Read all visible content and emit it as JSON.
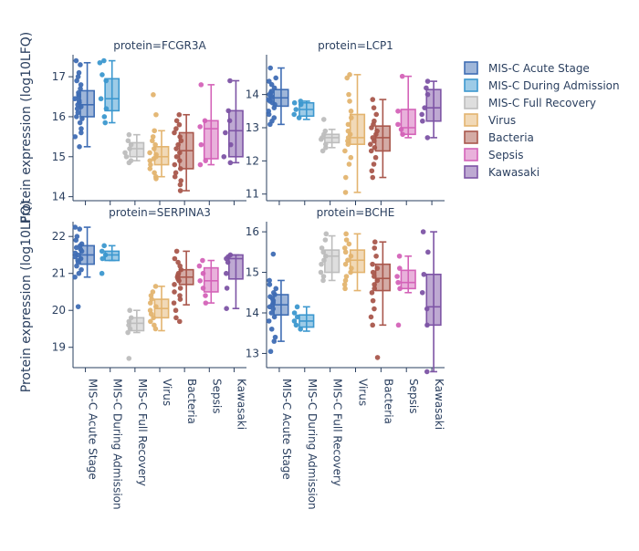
{
  "figure": {
    "ylabel": "Protein expression (log10LFQ)",
    "groups": [
      "MIS-C Acute Stage",
      "MIS-C During Admission",
      "MIS-C Full Recovery",
      "Virus",
      "Bacteria",
      "Sepsis",
      "Kawasaki"
    ],
    "colors": {
      "MIS-C Acute Stage": "#3f6db4",
      "MIS-C During Admission": "#3c98cf",
      "MIS-C Full Recovery": "#bdbdbd",
      "Virus": "#e3b46f",
      "Bacteria": "#a9574c",
      "Sepsis": "#d463b8",
      "Kawasaki": "#7d54a5"
    }
  },
  "legend": {
    "items": [
      {
        "label": "MIS-C Acute Stage",
        "color": "#3f6db4"
      },
      {
        "label": "MIS-C During Admission",
        "color": "#3c98cf"
      },
      {
        "label": "MIS-C Full Recovery",
        "color": "#bdbdbd"
      },
      {
        "label": "Virus",
        "color": "#e3b46f"
      },
      {
        "label": "Bacteria",
        "color": "#a9574c"
      },
      {
        "label": "Sepsis",
        "color": "#d463b8"
      },
      {
        "label": "Kawasaki",
        "color": "#7d54a5"
      }
    ]
  },
  "chart_data": [
    {
      "type": "box",
      "title": "protein=FCGR3A",
      "ylabel": "Protein expression (log10LFQ)",
      "ylim": [
        13.9,
        17.55
      ],
      "yticks": [
        14,
        15,
        16,
        17
      ],
      "boxes": [
        {
          "group": "MIS-C Acute Stage",
          "lower": 15.25,
          "q1": 16.0,
          "median": 16.3,
          "q3": 16.65,
          "upper": 17.35,
          "points": [
            17.4,
            17.3,
            17.1,
            17.0,
            16.9,
            16.8,
            16.7,
            16.6,
            16.55,
            16.5,
            16.45,
            16.4,
            16.35,
            16.3,
            16.25,
            16.2,
            16.1,
            16.0,
            15.95,
            15.85,
            15.7,
            15.6,
            15.5,
            15.25
          ]
        },
        {
          "group": "MIS-C During Admission",
          "lower": 15.85,
          "q1": 16.15,
          "median": 16.45,
          "q3": 16.95,
          "upper": 17.4,
          "points": [
            17.4,
            17.35,
            17.05,
            16.9,
            16.45,
            16.2,
            16.0,
            15.85
          ]
        },
        {
          "group": "MIS-C Full Recovery",
          "lower": 14.9,
          "q1": 15.0,
          "median": 15.2,
          "q3": 15.35,
          "upper": 15.55,
          "points": [
            15.55,
            15.4,
            15.3,
            15.2,
            15.1,
            15.0,
            14.9,
            14.85
          ]
        },
        {
          "group": "Virus",
          "lower": 14.5,
          "q1": 14.8,
          "median": 15.0,
          "q3": 15.25,
          "upper": 15.65,
          "points": [
            16.55,
            16.05,
            15.65,
            15.5,
            15.4,
            15.3,
            15.2,
            15.1,
            15.05,
            15.0,
            14.95,
            14.9,
            14.8,
            14.7,
            14.6,
            14.5,
            14.45
          ]
        },
        {
          "group": "Bacteria",
          "lower": 14.15,
          "q1": 14.7,
          "median": 15.15,
          "q3": 15.6,
          "upper": 16.05,
          "points": [
            16.05,
            15.9,
            15.8,
            15.7,
            15.6,
            15.5,
            15.4,
            15.3,
            15.2,
            15.1,
            15.0,
            14.9,
            14.8,
            14.7,
            14.6,
            14.5,
            14.4,
            14.3,
            14.15
          ]
        },
        {
          "group": "Sepsis",
          "lower": 14.8,
          "q1": 14.95,
          "median": 15.7,
          "q3": 15.9,
          "upper": 16.8,
          "points": [
            16.8,
            15.9,
            15.75,
            15.3,
            14.9,
            14.8
          ]
        },
        {
          "group": "Kawasaki",
          "lower": 14.85,
          "q1": 15.0,
          "median": 15.65,
          "q3": 16.15,
          "upper": 16.9,
          "points": [
            16.9,
            16.15,
            15.9,
            15.6,
            15.3,
            15.0,
            14.85
          ]
        }
      ]
    },
    {
      "type": "box",
      "title": "protein=LCP1",
      "ylim": [
        10.8,
        15.2
      ],
      "yticks": [
        11,
        12,
        13,
        14
      ],
      "boxes": [
        {
          "group": "MIS-C Acute Stage",
          "lower": 13.1,
          "q1": 13.65,
          "median": 13.9,
          "q3": 14.15,
          "upper": 14.8,
          "points": [
            14.8,
            14.5,
            14.4,
            14.3,
            14.2,
            14.1,
            14.05,
            14.0,
            13.95,
            13.9,
            13.85,
            13.8,
            13.75,
            13.7,
            13.6,
            13.5,
            13.4,
            13.3,
            13.2,
            13.1
          ]
        },
        {
          "group": "MIS-C During Admission",
          "lower": 13.25,
          "q1": 13.35,
          "median": 13.55,
          "q3": 13.75,
          "upper": 13.8,
          "points": [
            13.8,
            13.75,
            13.7,
            13.55,
            13.4,
            13.3
          ]
        },
        {
          "group": "MIS-C Full Recovery",
          "lower": 12.4,
          "q1": 12.55,
          "median": 12.7,
          "q3": 12.8,
          "upper": 12.95,
          "points": [
            13.25,
            12.9,
            12.8,
            12.7,
            12.65,
            12.5,
            12.4,
            12.3
          ]
        },
        {
          "group": "Virus",
          "lower": 11.05,
          "q1": 12.5,
          "median": 12.7,
          "q3": 13.4,
          "upper": 14.6,
          "points": [
            14.6,
            14.5,
            14.0,
            13.8,
            13.5,
            13.3,
            13.1,
            12.9,
            12.8,
            12.7,
            12.6,
            12.5,
            12.3,
            12.1,
            11.9,
            11.5,
            11.05
          ]
        },
        {
          "group": "Bacteria",
          "lower": 11.5,
          "q1": 12.3,
          "median": 12.7,
          "q3": 13.05,
          "upper": 13.85,
          "points": [
            13.85,
            13.6,
            13.4,
            13.2,
            13.1,
            13.0,
            12.9,
            12.8,
            12.7,
            12.6,
            12.5,
            12.4,
            12.3,
            12.1,
            11.9,
            11.7,
            11.5
          ]
        },
        {
          "group": "Sepsis",
          "lower": 12.7,
          "q1": 12.8,
          "median": 13.0,
          "q3": 13.55,
          "upper": 14.55,
          "points": [
            14.55,
            13.5,
            13.1,
            12.95,
            12.8
          ]
        },
        {
          "group": "Kawasaki",
          "lower": 12.7,
          "q1": 13.2,
          "median": 13.6,
          "q3": 14.15,
          "upper": 14.4,
          "points": [
            14.4,
            14.2,
            14.0,
            13.6,
            13.4,
            13.2,
            12.7
          ]
        }
      ]
    },
    {
      "type": "box",
      "title": "protein=SERPINA3",
      "ylabel": "Protein expression (log10LFQ)",
      "ylim": [
        18.45,
        22.4
      ],
      "yticks": [
        19,
        20,
        21,
        22
      ],
      "boxes": [
        {
          "group": "MIS-C Acute Stage",
          "lower": 20.9,
          "q1": 21.25,
          "median": 21.5,
          "q3": 21.75,
          "upper": 22.25,
          "points": [
            22.25,
            22.2,
            22.0,
            21.9,
            21.8,
            21.75,
            21.7,
            21.65,
            21.6,
            21.55,
            21.5,
            21.45,
            21.4,
            21.35,
            21.3,
            21.2,
            21.1,
            21.0,
            20.9,
            20.1
          ]
        },
        {
          "group": "MIS-C During Admission",
          "lower": 21.35,
          "q1": 21.35,
          "median": 21.5,
          "q3": 21.6,
          "upper": 21.75,
          "points": [
            21.75,
            21.6,
            21.5,
            21.4,
            21.0
          ]
        },
        {
          "group": "MIS-C Full Recovery",
          "lower": 19.4,
          "q1": 19.45,
          "median": 19.65,
          "q3": 19.8,
          "upper": 20.0,
          "points": [
            20.0,
            19.8,
            19.7,
            19.6,
            19.5,
            19.4,
            18.7
          ]
        },
        {
          "group": "Virus",
          "lower": 19.45,
          "q1": 19.8,
          "median": 20.05,
          "q3": 20.3,
          "upper": 20.65,
          "points": [
            20.65,
            20.5,
            20.4,
            20.3,
            20.2,
            20.1,
            20.0,
            19.9,
            19.8,
            19.7,
            19.6,
            19.5
          ]
        },
        {
          "group": "Bacteria",
          "lower": 20.15,
          "q1": 20.7,
          "median": 20.9,
          "q3": 21.1,
          "upper": 21.6,
          "points": [
            21.6,
            21.4,
            21.3,
            21.2,
            21.1,
            21.0,
            20.95,
            20.9,
            20.85,
            20.8,
            20.7,
            20.6,
            20.5,
            20.4,
            20.3,
            20.2,
            20.0,
            19.8,
            19.7
          ]
        },
        {
          "group": "Sepsis",
          "lower": 20.2,
          "q1": 20.5,
          "median": 20.8,
          "q3": 21.15,
          "upper": 21.35,
          "points": [
            21.35,
            21.2,
            21.0,
            20.8,
            20.6,
            20.4,
            20.2
          ]
        },
        {
          "group": "Kawasaki",
          "lower": 20.05,
          "q1": 20.85,
          "median": 21.4,
          "q3": 21.5,
          "upper": 21.5,
          "points": [
            21.5,
            21.45,
            21.4,
            21.3,
            21.0,
            20.6,
            20.05
          ]
        }
      ]
    },
    {
      "type": "box",
      "title": "protein=BCHE",
      "ylim": [
        12.65,
        16.25
      ],
      "yticks": [
        13,
        14,
        15,
        16
      ],
      "boxes": [
        {
          "group": "MIS-C Acute Stage",
          "lower": 13.3,
          "q1": 13.95,
          "median": 14.2,
          "q3": 14.45,
          "upper": 14.8,
          "points": [
            15.45,
            14.8,
            14.7,
            14.6,
            14.5,
            14.45,
            14.4,
            14.35,
            14.3,
            14.25,
            14.2,
            14.15,
            14.1,
            14.0,
            13.9,
            13.8,
            13.6,
            13.4,
            13.3,
            13.05
          ]
        },
        {
          "group": "MIS-C During Admission",
          "lower": 13.55,
          "q1": 13.65,
          "median": 13.8,
          "q3": 13.95,
          "upper": 14.15,
          "points": [
            14.15,
            14.0,
            13.9,
            13.8,
            13.7,
            13.6
          ]
        },
        {
          "group": "MIS-C Full Recovery",
          "lower": 14.8,
          "q1": 15.0,
          "median": 15.4,
          "q3": 15.55,
          "upper": 15.9,
          "points": [
            15.95,
            15.8,
            15.6,
            15.5,
            15.4,
            15.3,
            15.2,
            15.0,
            14.9,
            14.8
          ]
        },
        {
          "group": "Virus",
          "lower": 14.55,
          "q1": 15.0,
          "median": 15.3,
          "q3": 15.55,
          "upper": 15.95,
          "points": [
            15.95,
            15.8,
            15.7,
            15.6,
            15.5,
            15.4,
            15.3,
            15.2,
            15.1,
            15.0,
            14.9,
            14.8,
            14.7,
            14.6
          ]
        },
        {
          "group": "Bacteria",
          "lower": 13.7,
          "q1": 14.55,
          "median": 14.85,
          "q3": 15.2,
          "upper": 15.75,
          "points": [
            15.75,
            15.6,
            15.4,
            15.2,
            15.1,
            15.0,
            14.9,
            14.8,
            14.7,
            14.6,
            14.5,
            14.3,
            14.1,
            13.9,
            13.7,
            12.9
          ]
        },
        {
          "group": "Sepsis",
          "lower": 14.5,
          "q1": 14.6,
          "median": 14.75,
          "q3": 15.05,
          "upper": 15.4,
          "points": [
            15.4,
            15.1,
            14.9,
            14.75,
            14.6,
            13.7
          ]
        },
        {
          "group": "Kawasaki",
          "lower": 12.55,
          "q1": 13.7,
          "median": 14.15,
          "q3": 14.95,
          "upper": 16.0,
          "points": [
            16.0,
            15.5,
            14.95,
            14.5,
            14.1,
            13.7,
            12.55
          ]
        }
      ]
    }
  ]
}
